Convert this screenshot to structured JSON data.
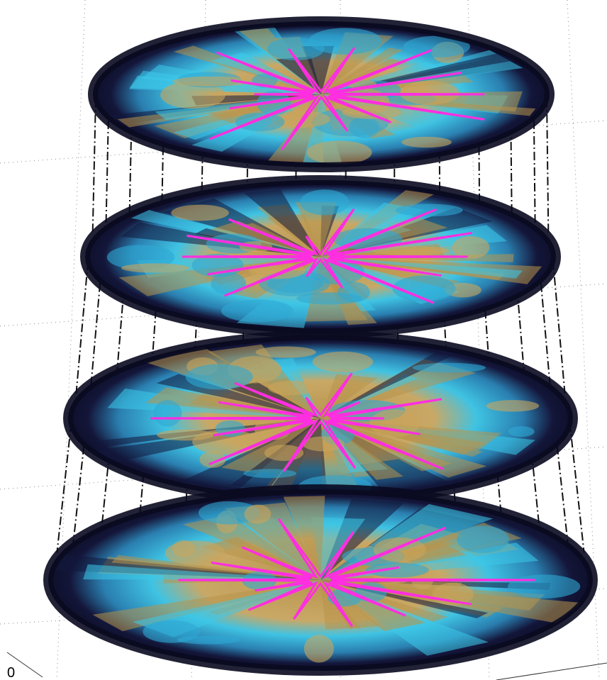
{
  "figure": {
    "axis_tick": "0"
  }
}
